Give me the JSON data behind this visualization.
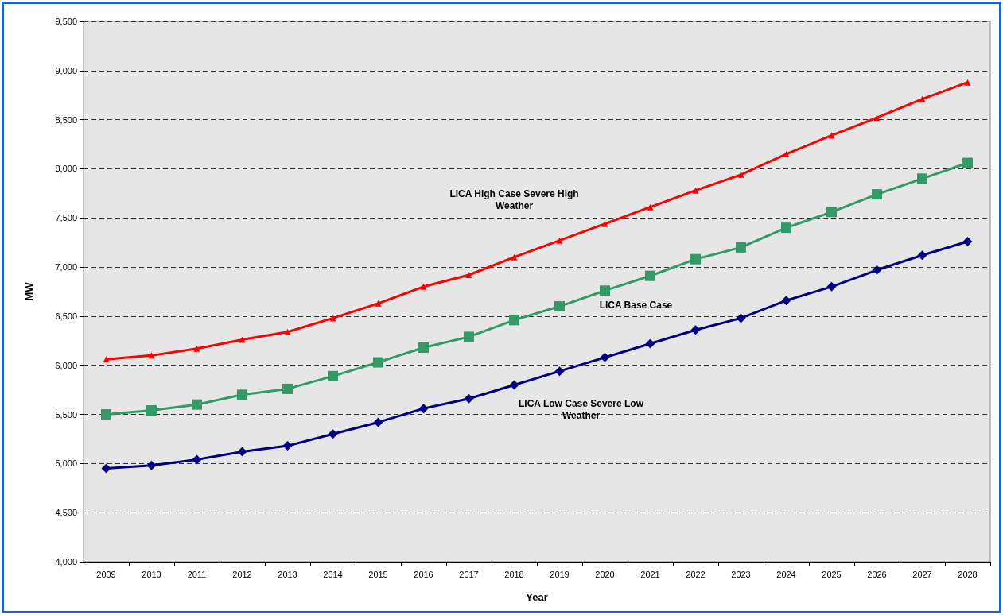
{
  "chart_data": {
    "type": "line",
    "xlabel": "Year",
    "ylabel": "MW",
    "categories": [
      "2009",
      "2010",
      "2011",
      "2012",
      "2013",
      "2014",
      "2015",
      "2016",
      "2017",
      "2018",
      "2019",
      "2020",
      "2021",
      "2022",
      "2023",
      "2024",
      "2025",
      "2026",
      "2027",
      "2028"
    ],
    "series": [
      {
        "name": "LICA High Case Severe High Weather",
        "color": "#ff0000",
        "marker": "triangle",
        "values": [
          6060,
          6100,
          6170,
          6260,
          6340,
          6480,
          6630,
          6800,
          6920,
          7100,
          7270,
          7440,
          7610,
          7780,
          7940,
          8150,
          8340,
          8520,
          8710,
          8880
        ]
      },
      {
        "name": "LICA Base Case",
        "color": "#339966",
        "marker": "square",
        "values": [
          5500,
          5540,
          5600,
          5700,
          5760,
          5890,
          6030,
          6180,
          6290,
          6460,
          6600,
          6760,
          6910,
          7080,
          7200,
          7400,
          7560,
          7740,
          7900,
          8060
        ]
      },
      {
        "name": "LICA Low Case Severe Low Weather",
        "color": "#000080",
        "marker": "diamond",
        "values": [
          4950,
          4980,
          5040,
          5120,
          5180,
          5300,
          5420,
          5560,
          5660,
          5800,
          5940,
          6080,
          6220,
          6360,
          6480,
          6660,
          6800,
          6970,
          7120,
          7260
        ]
      }
    ],
    "ylim": [
      4000,
      9500
    ],
    "yticks": [
      {
        "value": 4000,
        "label": "4,000"
      },
      {
        "value": 4500,
        "label": "4,500"
      },
      {
        "value": 5000,
        "label": "5,000"
      },
      {
        "value": 5500,
        "label": "5,500"
      },
      {
        "value": 6000,
        "label": "6,000"
      },
      {
        "value": 6500,
        "label": "6,500"
      },
      {
        "value": 7000,
        "label": "7,000"
      },
      {
        "value": 7500,
        "label": "7,500"
      },
      {
        "value": 8000,
        "label": "8,000"
      },
      {
        "value": 8500,
        "label": "8,500"
      },
      {
        "value": 9000,
        "label": "9,000"
      },
      {
        "value": 9500,
        "label": "9,500"
      }
    ],
    "grid": "y",
    "legend": false,
    "line_style": "solid"
  }
}
